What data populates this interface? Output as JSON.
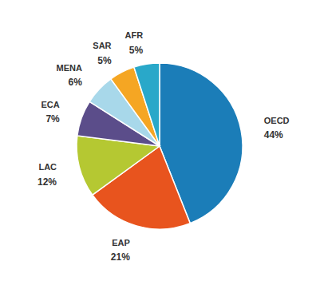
{
  "chart_data": {
    "type": "pie",
    "categories": [
      "OECD",
      "EAP",
      "LAC",
      "ECA",
      "MENA",
      "SAR",
      "AFR"
    ],
    "values": [
      44,
      21,
      12,
      7,
      6,
      5,
      5
    ],
    "value_labels": [
      "44%",
      "21%",
      "12%",
      "7%",
      "6%",
      "5%",
      "5%"
    ],
    "colors": [
      "#1b7db8",
      "#e8541e",
      "#b5c832",
      "#5b4d8a",
      "#a8d8ea",
      "#f5a623",
      "#29a8c9"
    ],
    "data_labels": true
  }
}
